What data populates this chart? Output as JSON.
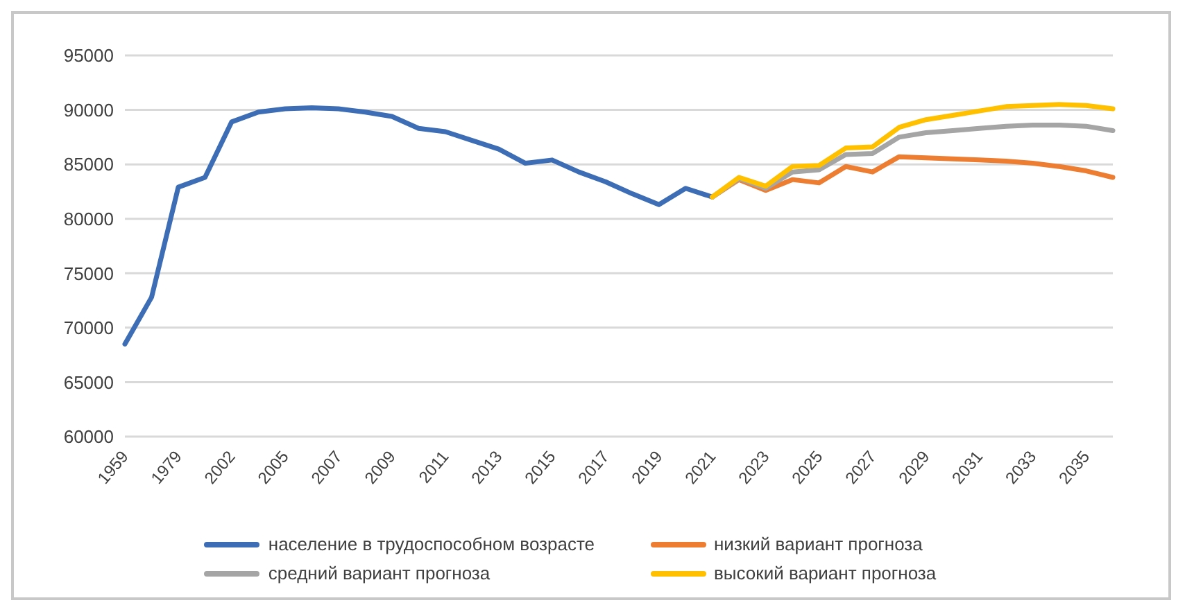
{
  "chart_data": {
    "type": "line",
    "categories": [
      "1959",
      null,
      "1979",
      null,
      "2002",
      null,
      "2005",
      null,
      "2007",
      null,
      "2009",
      null,
      "2011",
      null,
      "2013",
      null,
      "2015",
      null,
      "2017",
      null,
      "2019",
      null,
      "2021",
      null,
      "2023",
      null,
      "2025",
      null,
      "2027",
      null,
      "2029",
      null,
      "2031",
      null,
      "2033",
      null,
      "2035",
      null
    ],
    "ylim": [
      60000,
      95000
    ],
    "yticks": [
      60000,
      65000,
      70000,
      75000,
      80000,
      85000,
      90000,
      95000
    ],
    "grid": "y",
    "legend": "bottom",
    "marker": "none",
    "line_style": "solid",
    "series": [
      {
        "name": "население в трудоспособном возрасте",
        "color": "#3d6db5",
        "values": [
          68500,
          72800,
          82900,
          83800,
          88900,
          89800,
          90100,
          90200,
          90100,
          89800,
          89400,
          88300,
          88000,
          87200,
          86400,
          85100,
          85400,
          84300,
          83400,
          82300,
          81300,
          82800,
          82000,
          null,
          null,
          null,
          null,
          null,
          null,
          null,
          null,
          null,
          null,
          null,
          null,
          null,
          null,
          null
        ]
      },
      {
        "name": "низкий вариант прогноза",
        "color": "#ed7d31",
        "values": [
          null,
          null,
          null,
          null,
          null,
          null,
          null,
          null,
          null,
          null,
          null,
          null,
          null,
          null,
          null,
          null,
          null,
          null,
          null,
          null,
          null,
          null,
          82000,
          83600,
          82600,
          83600,
          83300,
          84800,
          84300,
          85700,
          85600,
          85500,
          85400,
          85300,
          85100,
          84800,
          84400,
          83800
        ]
      },
      {
        "name": "средний вариант прогноза",
        "color": "#a5a5a5",
        "values": [
          null,
          null,
          null,
          null,
          null,
          null,
          null,
          null,
          null,
          null,
          null,
          null,
          null,
          null,
          null,
          null,
          null,
          null,
          null,
          null,
          null,
          null,
          82000,
          83700,
          82800,
          84300,
          84500,
          85900,
          86000,
          87500,
          87900,
          88100,
          88300,
          88500,
          88600,
          88600,
          88500,
          88100
        ]
      },
      {
        "name": "высокий вариант прогноза",
        "color": "#ffc000",
        "values": [
          null,
          null,
          null,
          null,
          null,
          null,
          null,
          null,
          null,
          null,
          null,
          null,
          null,
          null,
          null,
          null,
          null,
          null,
          null,
          null,
          null,
          null,
          82000,
          83800,
          83000,
          84800,
          84900,
          86500,
          86600,
          88400,
          89100,
          89500,
          89900,
          90300,
          90400,
          90500,
          90400,
          90100
        ]
      }
    ]
  }
}
